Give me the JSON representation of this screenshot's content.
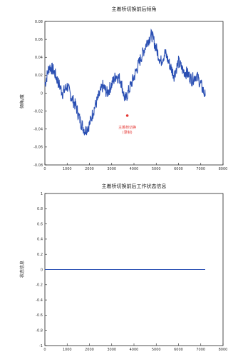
{
  "colors": {
    "series": "#2a4fb3",
    "annotation": "#e53935",
    "axis": "#222222"
  },
  "chart_data": [
    {
      "type": "line",
      "title": "主着桥切换前后倾角",
      "ylabel": "倾角/度",
      "xlabel": "",
      "xlim": [
        0,
        8000
      ],
      "ylim": [
        -0.08,
        0.08
      ],
      "x_ticks": [
        "0",
        "1000",
        "2000",
        "3000",
        "4000",
        "5000",
        "6000",
        "7000",
        "8000"
      ],
      "y_ticks": [
        "0.08",
        "0.06",
        "0.04",
        "0.02",
        "0",
        "-0.02",
        "-0.04",
        "-0.06",
        "-0.08"
      ],
      "grid": false,
      "series": [
        {
          "x": [
            0,
            200,
            400,
            600,
            800,
            1000,
            1200,
            1400,
            1600,
            1800,
            2000,
            2200,
            2400,
            2600,
            2800,
            3000,
            3200,
            3400,
            3600,
            3800,
            4000,
            4200,
            4400,
            4600,
            4800,
            5000,
            5200,
            5400,
            5600,
            5800,
            6000,
            6200,
            6400,
            6600,
            6800,
            7000,
            7200
          ],
          "y": [
            0.01,
            0.03,
            0.025,
            0.012,
            0.0,
            0.008,
            -0.005,
            -0.015,
            -0.032,
            -0.042,
            -0.035,
            -0.018,
            -0.005,
            0.008,
            0.0,
            0.01,
            0.02,
            0.015,
            -0.008,
            0.005,
            0.018,
            0.032,
            0.045,
            0.058,
            0.065,
            0.05,
            0.035,
            0.045,
            0.032,
            0.02,
            0.035,
            0.025,
            0.022,
            0.015,
            0.02,
            0.01,
            -0.003
          ]
        }
      ],
      "annotation": {
        "label": "主着桥切换",
        "label2": "(录制)",
        "x": 3700,
        "y": -0.025
      }
    },
    {
      "type": "line",
      "title": "主着桥切换前后工作状态信息",
      "ylabel": "状态信息",
      "xlabel": "",
      "xlim": [
        0,
        8000
      ],
      "ylim": [
        -1,
        1
      ],
      "x_ticks": [
        "0",
        "1000",
        "2000",
        "3000",
        "4000",
        "5000",
        "6000",
        "7000",
        "8000"
      ],
      "y_ticks": [
        "1",
        "0.8",
        "0.6",
        "0.4",
        "0.2",
        "0",
        "-0.2",
        "-0.4",
        "-0.6",
        "-0.8",
        "-1"
      ],
      "grid": false,
      "series": [
        {
          "x": [
            0,
            7200
          ],
          "y": [
            0,
            0
          ]
        }
      ]
    }
  ]
}
